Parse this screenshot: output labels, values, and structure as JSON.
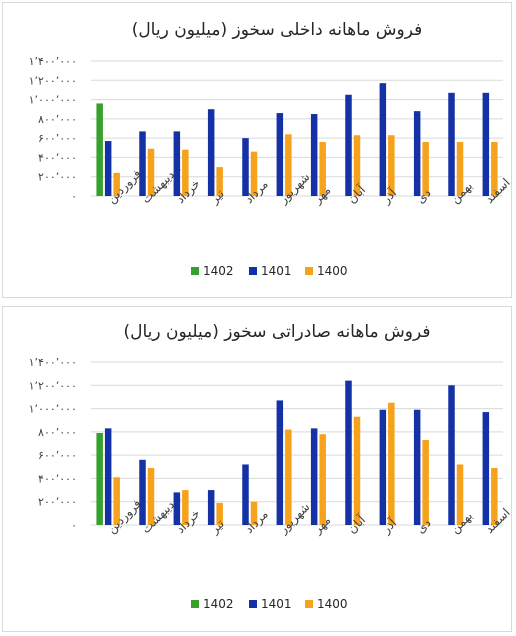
{
  "colors": {
    "1402": "#38a12e",
    "1401": "#1531a6",
    "1400": "#f6a21c"
  },
  "chart_data": [
    {
      "type": "bar",
      "title": "فروش ماهانه داخلی سخوز (میلیون ریال)",
      "categories": [
        "فروردین",
        "اردیبهشت",
        "خرداد",
        "تیر",
        "مرداد",
        "شهریور",
        "مهر",
        "آبان",
        "آذر",
        "دی",
        "بهمن",
        "اسفند"
      ],
      "ylim": [
        0,
        1400000
      ],
      "yticks": [
        "۰",
        "۲۰۰٬۰۰۰",
        "۴۰۰٬۰۰۰",
        "۶۰۰٬۰۰۰",
        "۸۰۰٬۰۰۰",
        "۱٬۰۰۰٬۰۰۰",
        "۱٬۲۰۰٬۰۰۰",
        "۱٬۴۰۰٬۰۰۰"
      ],
      "legend_position": "bottom",
      "grid": true,
      "series": [
        {
          "name": "1402",
          "values": [
            960000,
            null,
            null,
            null,
            null,
            null,
            null,
            null,
            null,
            null,
            null,
            null
          ]
        },
        {
          "name": "1401",
          "values": [
            570000,
            670000,
            670000,
            900000,
            600000,
            860000,
            850000,
            1050000,
            1170000,
            880000,
            1070000,
            1070000
          ]
        },
        {
          "name": "1400",
          "values": [
            240000,
            490000,
            480000,
            300000,
            460000,
            640000,
            560000,
            630000,
            630000,
            560000,
            560000,
            560000
          ]
        }
      ]
    },
    {
      "type": "bar",
      "title": "فروش ماهانه صادراتی سخوز (میلیون ریال)",
      "categories": [
        "فروردین",
        "اردیبهشت",
        "خرداد",
        "تیر",
        "مرداد",
        "شهریور",
        "مهر",
        "آبان",
        "آذر",
        "دی",
        "بهمن",
        "اسفند"
      ],
      "ylim": [
        0,
        1400000
      ],
      "yticks": [
        "۰",
        "۲۰۰٬۰۰۰",
        "۴۰۰٬۰۰۰",
        "۶۰۰٬۰۰۰",
        "۸۰۰٬۰۰۰",
        "۱٬۰۰۰٬۰۰۰",
        "۱٬۲۰۰٬۰۰۰",
        "۱٬۴۰۰٬۰۰۰"
      ],
      "legend_position": "bottom",
      "grid": true,
      "series": [
        {
          "name": "1402",
          "values": [
            790000,
            null,
            null,
            null,
            null,
            null,
            null,
            null,
            null,
            null,
            null,
            null
          ]
        },
        {
          "name": "1401",
          "values": [
            830000,
            560000,
            280000,
            300000,
            520000,
            1070000,
            830000,
            1240000,
            990000,
            990000,
            1200000,
            970000
          ]
        },
        {
          "name": "1400",
          "values": [
            410000,
            490000,
            300000,
            190000,
            200000,
            820000,
            780000,
            930000,
            1050000,
            730000,
            520000,
            490000
          ]
        }
      ]
    }
  ]
}
